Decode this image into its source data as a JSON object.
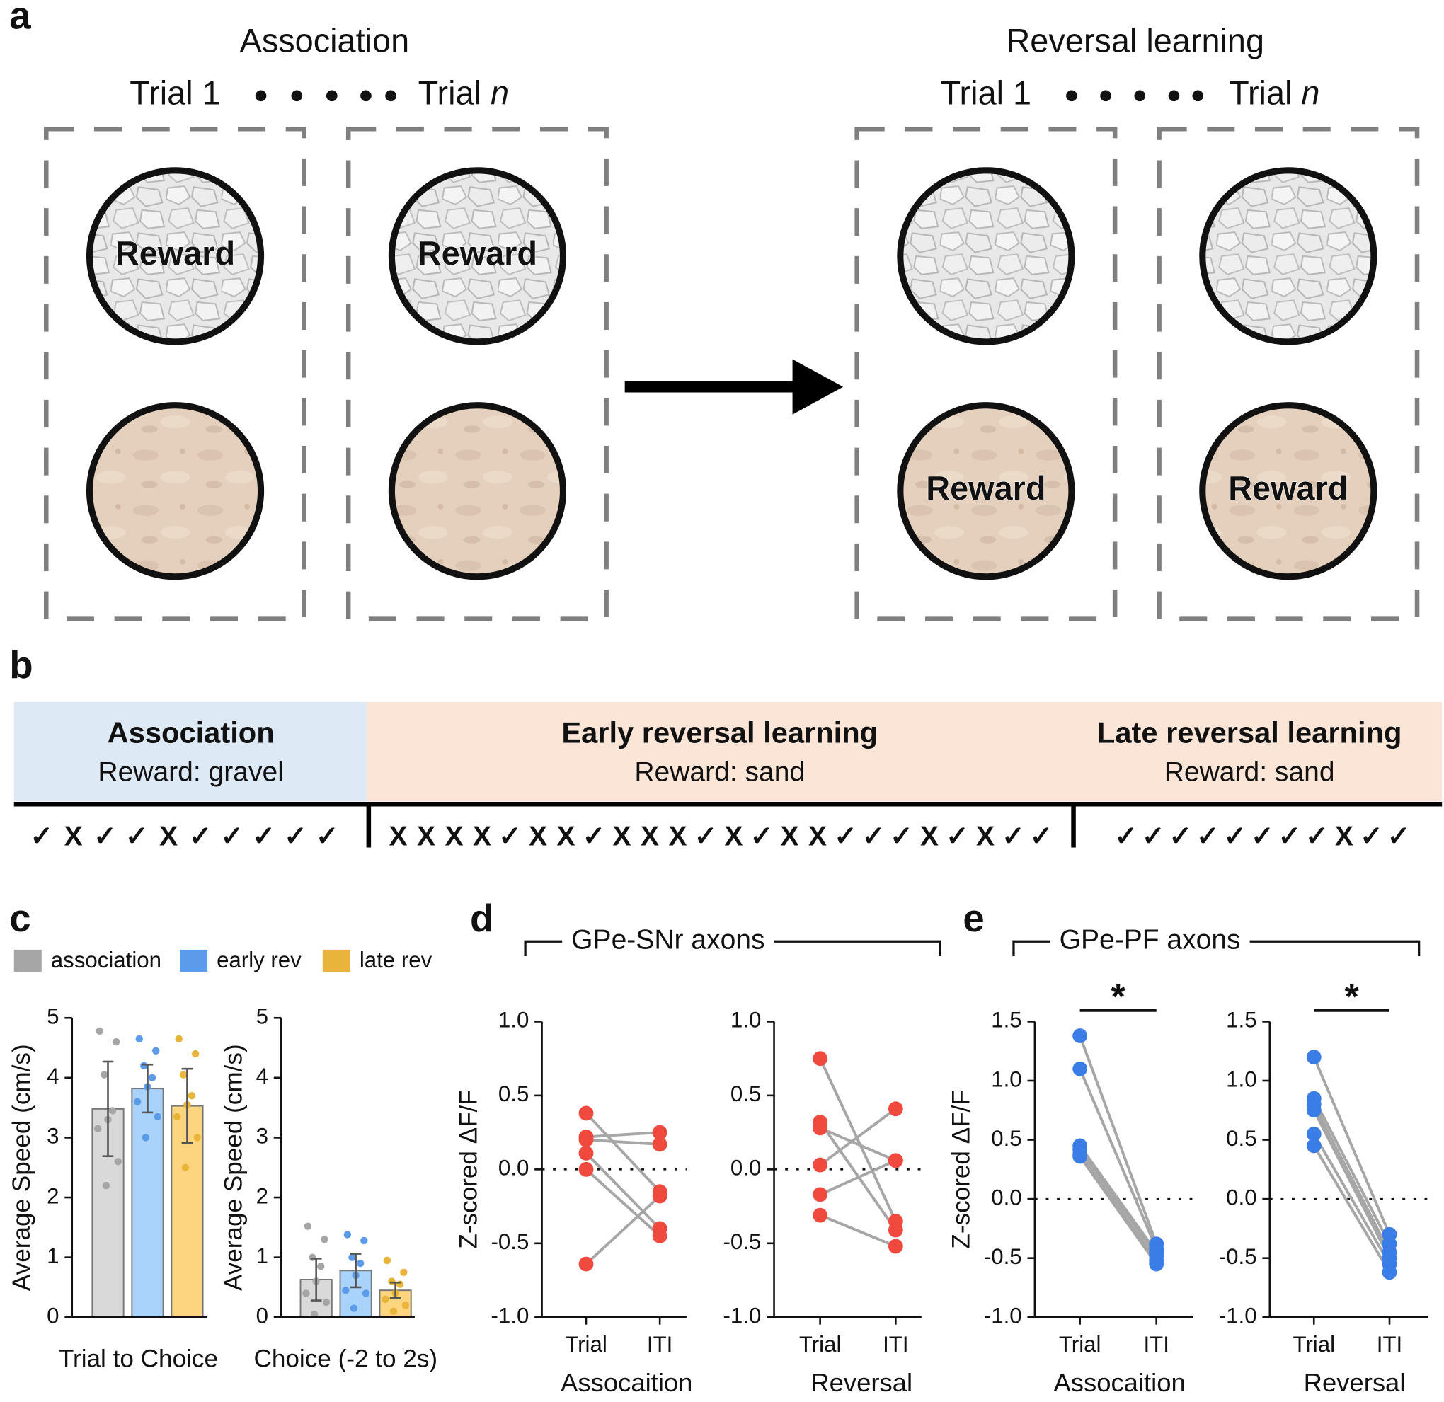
{
  "panel_a": {
    "label": "a",
    "stages": [
      {
        "title": "Association",
        "trials": [
          {
            "trial": "Trial",
            "number": "1",
            "reward": "Reward",
            "reward_position": "top"
          },
          {
            "trial": "Trial",
            "number": "n",
            "number_italic": true,
            "reward": "Reward",
            "reward_position": "top"
          }
        ]
      },
      {
        "title": "Reversal learning",
        "trials": [
          {
            "trial": "Trial",
            "number": "1",
            "reward": "Reward",
            "reward_position": "bottom"
          },
          {
            "trial": "Trial",
            "number": "n",
            "number_italic": true,
            "reward": "Reward",
            "reward_position": "bottom"
          }
        ]
      }
    ]
  },
  "panel_b": {
    "label": "b",
    "symbol_colors": {
      "✓": "#111111",
      "X": "#d62e2e"
    },
    "phases": [
      {
        "title": "Association",
        "subtitle": "Reward: gravel",
        "color": "#dde9f5",
        "outcomes": [
          "✓",
          "X",
          "✓",
          "✓",
          "X",
          "✓",
          "✓",
          "✓",
          "✓",
          "✓"
        ]
      },
      {
        "title": "Early reversal learning",
        "subtitle": "Reward: sand",
        "color": "#fbe5d6",
        "outcomes": [
          "X",
          "X",
          "X",
          "X",
          "✓",
          "X",
          "X",
          "✓",
          "X",
          "X",
          "X",
          "✓",
          "X",
          "✓",
          "X",
          "X",
          "✓",
          "✓",
          "✓",
          "X",
          "✓",
          "X",
          "✓",
          "✓"
        ]
      },
      {
        "title": "Late reversal learning",
        "subtitle": "Reward: sand",
        "color": "#fbe5d6",
        "outcomes": [
          "✓",
          "✓",
          "✓",
          "✓",
          "✓",
          "✓",
          "✓",
          "✓",
          "X",
          "✓",
          "✓"
        ]
      }
    ]
  },
  "chart_data": [
    {
      "type": "bar",
      "panel_label": "c",
      "xlabel": "Trial to Choice",
      "ylabel": "Average Speed (cm/s)",
      "ylim": [
        0,
        5
      ],
      "yticks": [
        0,
        1,
        2,
        3,
        4,
        5
      ],
      "series": [
        {
          "name": "association",
          "color": "#d9d9d9",
          "point_color": "#a6a6a6",
          "values": [
            3.48
          ],
          "errors": [
            0.79
          ],
          "points": [
            [
              4.78,
              4.6,
              4.05,
              3.45,
              3.3,
              3.15,
              2.6,
              2.2
            ]
          ]
        },
        {
          "name": "early rev",
          "color": "#a9d3fb",
          "point_color": "#5b9bea",
          "values": [
            3.82
          ],
          "errors": [
            0.4
          ],
          "points": [
            [
              4.65,
              4.45,
              4.2,
              4.0,
              3.85,
              3.6,
              3.35,
              3.0
            ]
          ]
        },
        {
          "name": "late rev",
          "color": "#fdd57e",
          "point_color": "#e8b53a",
          "values": [
            3.53
          ],
          "errors": [
            0.62
          ],
          "points": [
            [
              4.65,
              4.4,
              4.05,
              3.7,
              3.55,
              3.35,
              3.0,
              2.5
            ]
          ]
        }
      ]
    },
    {
      "type": "bar",
      "xlabel": "Choice (-2 to 2s)",
      "ylabel": "Average Speed (cm/s)",
      "ylim": [
        0,
        5
      ],
      "yticks": [
        0,
        1,
        2,
        3,
        4,
        5
      ],
      "series": [
        {
          "color": "#d9d9d9",
          "point_color": "#a6a6a6",
          "values": [
            0.63
          ],
          "errors": [
            0.35
          ],
          "points": [
            [
              1.52,
              1.3,
              1.0,
              0.85,
              0.6,
              0.4,
              0.25,
              0.05
            ]
          ]
        },
        {
          "color": "#a9d3fb",
          "point_color": "#5b9bea",
          "values": [
            0.78
          ],
          "errors": [
            0.28
          ],
          "points": [
            [
              1.38,
              1.28,
              1.0,
              0.9,
              0.7,
              0.45,
              0.4,
              0.15
            ]
          ]
        },
        {
          "color": "#fdd57e",
          "point_color": "#e8b53a",
          "values": [
            0.45
          ],
          "errors": [
            0.13
          ],
          "points": [
            [
              0.95,
              0.75,
              0.6,
              0.55,
              0.4,
              0.3,
              0.2,
              0.1
            ]
          ]
        }
      ]
    },
    {
      "type": "paired",
      "panel_label": "d",
      "group_title": "GPe-SNr axons",
      "categories": [
        "Trial",
        "ITI"
      ],
      "xlabel": "Assocaition",
      "ylabel": "Z-scored ΔF/F",
      "ylim": [
        -1,
        1
      ],
      "yticks": [
        {
          "value": -1,
          "label": "-1.0"
        },
        -0.5,
        {
          "value": 0,
          "label": "0.0"
        },
        0.5,
        {
          "value": 1,
          "label": "1.0"
        }
      ],
      "color": "#f04a3f",
      "values": [
        [
          0.38,
          -0.15
        ],
        [
          0.22,
          0.25
        ],
        [
          0.2,
          0.17
        ],
        [
          0.11,
          -0.4
        ],
        [
          0.0,
          -0.45
        ],
        [
          -0.64,
          -0.18
        ]
      ]
    },
    {
      "type": "paired",
      "categories": [
        "Trial",
        "ITI"
      ],
      "xlabel": "Reversal",
      "ylim": [
        -1,
        1
      ],
      "yticks": [
        {
          "value": -1,
          "label": "-1.0"
        },
        -0.5,
        {
          "value": 0,
          "label": "0.0"
        },
        0.5,
        {
          "value": 1,
          "label": "1.0"
        }
      ],
      "color": "#f04a3f",
      "values": [
        [
          0.75,
          -0.35
        ],
        [
          0.32,
          -0.41
        ],
        [
          0.28,
          0.06
        ],
        [
          0.03,
          0.41
        ],
        [
          -0.17,
          0.06
        ],
        [
          -0.31,
          -0.52
        ]
      ]
    },
    {
      "type": "paired",
      "panel_label": "e",
      "group_title": "GPe-PF axons",
      "categories": [
        "Trial",
        "ITI"
      ],
      "xlabel": "Assocaition",
      "ylabel": "Z-scored ΔF/F",
      "ylim": [
        -1,
        1.5
      ],
      "yticks": [
        {
          "value": -1,
          "label": "-1.0"
        },
        -0.5,
        {
          "value": 0,
          "label": "0.0"
        },
        0.5,
        {
          "value": 1,
          "label": "1.0"
        },
        1.5
      ],
      "color": "#3b7de6",
      "annotation": "*",
      "values": [
        [
          1.38,
          -0.38
        ],
        [
          1.1,
          -0.42
        ],
        [
          0.45,
          -0.45
        ],
        [
          0.42,
          -0.48
        ],
        [
          0.38,
          -0.52
        ],
        [
          0.36,
          -0.55
        ]
      ]
    },
    {
      "type": "paired",
      "categories": [
        "Trial",
        "ITI"
      ],
      "xlabel": "Reversal",
      "ylim": [
        -1,
        1.5
      ],
      "yticks": [
        {
          "value": -1,
          "label": "-1.0"
        },
        -0.5,
        {
          "value": 0,
          "label": "0.0"
        },
        0.5,
        {
          "value": 1,
          "label": "1.0"
        },
        1.5
      ],
      "color": "#3b7de6",
      "annotation": "*",
      "values": [
        [
          1.2,
          -0.3
        ],
        [
          0.85,
          -0.38
        ],
        [
          0.8,
          -0.45
        ],
        [
          0.75,
          -0.5
        ],
        [
          0.55,
          -0.55
        ],
        [
          0.45,
          -0.62
        ]
      ]
    }
  ]
}
